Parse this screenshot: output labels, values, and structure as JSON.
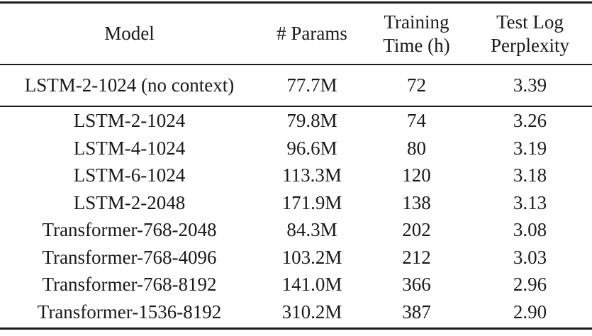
{
  "table": {
    "title": "Model comparison results table",
    "background": "#ffffff",
    "text_color": "#1a1a1a",
    "rule_color": "#1a1a1a",
    "header": {
      "model": "Model",
      "params": "# Params",
      "training_time": "Training\nTime (h)",
      "perplexity": "Test Log\nPerplexity"
    },
    "rows": [
      {
        "model": "LSTM-2-1024 (no context)",
        "params": "77.7M",
        "time": "72",
        "perplexity": "3.39"
      },
      {
        "model": "LSTM-2-1024",
        "params": "79.8M",
        "time": "74",
        "perplexity": "3.26"
      },
      {
        "model": "LSTM-4-1024",
        "params": "96.6M",
        "time": "80",
        "perplexity": "3.19"
      },
      {
        "model": "LSTM-6-1024",
        "params": "113.3M",
        "time": "120",
        "perplexity": "3.18"
      },
      {
        "model": "LSTM-2-2048",
        "params": "171.9M",
        "time": "138",
        "perplexity": "3.13"
      },
      {
        "model": "Transformer-768-2048",
        "params": "84.3M",
        "time": "202",
        "perplexity": "3.08"
      },
      {
        "model": "Transformer-768-4096",
        "params": "103.2M",
        "time": "212",
        "perplexity": "3.03"
      },
      {
        "model": "Transformer-768-8192",
        "params": "141.0M",
        "time": "366",
        "perplexity": "2.96"
      },
      {
        "model": "Transformer-1536-8192",
        "params": "310.2M",
        "time": "387",
        "perplexity": "2.90"
      }
    ]
  },
  "chart_data": {
    "type": "table",
    "title": "",
    "columns": [
      "Model",
      "# Params",
      "Training Time (h)",
      "Test Log Perplexity"
    ],
    "rows": [
      [
        "LSTM-2-1024 (no context)",
        "77.7M",
        72,
        3.39
      ],
      [
        "LSTM-2-1024",
        "79.8M",
        74,
        3.26
      ],
      [
        "LSTM-4-1024",
        "96.6M",
        80,
        3.19
      ],
      [
        "LSTM-6-1024",
        "113.3M",
        120,
        3.18
      ],
      [
        "LSTM-2-2048",
        "171.9M",
        138,
        3.13
      ],
      [
        "Transformer-768-2048",
        "84.3M",
        202,
        3.08
      ],
      [
        "Transformer-768-4096",
        "103.2M",
        212,
        3.03
      ],
      [
        "Transformer-768-8192",
        "141.0M",
        366,
        2.96
      ],
      [
        "Transformer-1536-8192",
        "310.2M",
        387,
        2.9
      ]
    ]
  }
}
